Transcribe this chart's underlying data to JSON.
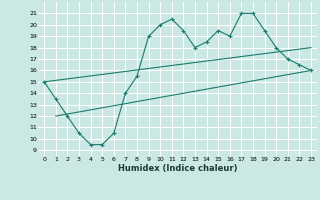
{
  "title": "",
  "xlabel": "Humidex (Indice chaleur)",
  "bg_color": "#cce8e4",
  "grid_color": "#ffffff",
  "line_color": "#1a7a6e",
  "xlim": [
    -0.5,
    23.5
  ],
  "ylim": [
    8.5,
    22
  ],
  "xticks": [
    0,
    1,
    2,
    3,
    4,
    5,
    6,
    7,
    8,
    9,
    10,
    11,
    12,
    13,
    14,
    15,
    16,
    17,
    18,
    19,
    20,
    21,
    22,
    23
  ],
  "yticks": [
    9,
    10,
    11,
    12,
    13,
    14,
    15,
    16,
    17,
    18,
    19,
    20,
    21
  ],
  "series_main": {
    "x": [
      0,
      1,
      2,
      3,
      4,
      5,
      6,
      7,
      8,
      9,
      10,
      11,
      12,
      13,
      14,
      15,
      16,
      17,
      18,
      19,
      20,
      21,
      22,
      23
    ],
    "y": [
      15,
      13.5,
      12,
      10.5,
      9.5,
      9.5,
      10.5,
      14,
      15.5,
      19,
      20,
      20.5,
      19.5,
      18,
      18.5,
      19.5,
      19,
      21,
      21,
      19.5,
      18,
      17,
      16.5,
      16
    ]
  },
  "series_line1": {
    "x": [
      1,
      23
    ],
    "y": [
      12,
      16
    ]
  },
  "series_line2": {
    "x": [
      0,
      23
    ],
    "y": [
      15,
      18
    ]
  }
}
